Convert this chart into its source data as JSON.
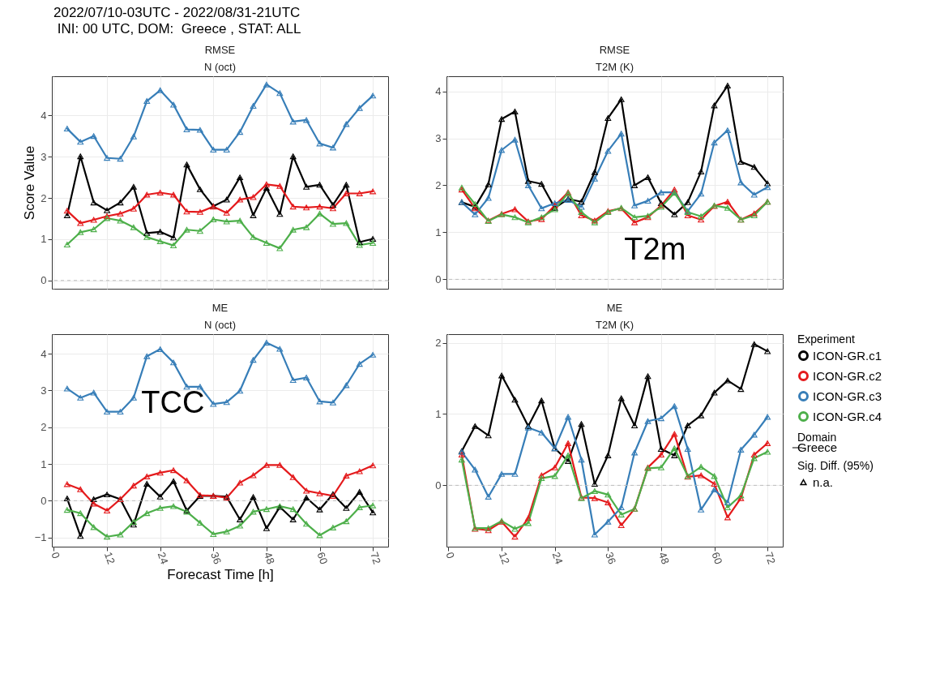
{
  "chart_data": [
    {
      "type": "line",
      "title": "RMSE",
      "subtitle": "N (oct)",
      "ylabel": "Score Value",
      "annotations": [
        "2022/07/10-03UTC - 2022/08/31-21UTC",
        " INI: 00 UTC, DOM:  Greece , STAT: ALL"
      ],
      "x": [
        3,
        6,
        9,
        12,
        15,
        18,
        21,
        24,
        27,
        30,
        33,
        36,
        39,
        42,
        45,
        48,
        51,
        54,
        57,
        60,
        63,
        66,
        69,
        72
      ],
      "xlim": [
        -0.45,
        75.45
      ],
      "xticks": [
        0,
        12,
        24,
        36,
        48,
        60,
        72
      ],
      "ylim": [
        -0.2,
        4.95
      ],
      "yticks": [
        0,
        1,
        2,
        3,
        4
      ],
      "tick_labels": "y",
      "grid": true,
      "marker": "triangle",
      "line_style": "solid",
      "ref_lines": [
        {
          "axis": "y",
          "value": 0,
          "color": "#bdbdbd",
          "line_style": "dashed"
        }
      ],
      "series": [
        {
          "color": "#000000",
          "values": [
            1.58,
            3.01,
            1.89,
            1.7,
            1.89,
            2.27,
            1.15,
            1.18,
            1.04,
            2.81,
            2.21,
            1.8,
            1.96,
            2.5,
            1.58,
            2.24,
            1.61,
            3.01,
            2.27,
            2.32,
            1.83,
            2.32,
            0.93,
            1.01
          ]
        },
        {
          "color": "#e41a1c",
          "values": [
            1.69,
            1.39,
            1.47,
            1.56,
            1.62,
            1.74,
            2.08,
            2.13,
            2.08,
            1.67,
            1.66,
            1.79,
            1.64,
            1.96,
            2.02,
            2.33,
            2.29,
            1.79,
            1.77,
            1.79,
            1.75,
            2.11,
            2.11,
            2.16
          ]
        },
        {
          "color": "#377eb8",
          "values": [
            3.68,
            3.36,
            3.5,
            2.97,
            2.95,
            3.49,
            4.35,
            4.61,
            4.26,
            3.66,
            3.65,
            3.17,
            3.17,
            3.6,
            4.23,
            4.75,
            4.54,
            3.85,
            3.89,
            3.32,
            3.22,
            3.79,
            4.18,
            4.48
          ]
        },
        {
          "color": "#4daf4a",
          "values": [
            0.87,
            1.17,
            1.24,
            1.51,
            1.45,
            1.29,
            1.05,
            0.95,
            0.85,
            1.23,
            1.2,
            1.48,
            1.43,
            1.45,
            1.05,
            0.91,
            0.78,
            1.23,
            1.29,
            1.62,
            1.37,
            1.39,
            0.86,
            0.91
          ]
        }
      ]
    },
    {
      "type": "line",
      "title": "RMSE",
      "subtitle": "T2M (K)",
      "annotations": [
        "T2m"
      ],
      "x": [
        3,
        6,
        9,
        12,
        15,
        18,
        21,
        24,
        27,
        30,
        33,
        36,
        39,
        42,
        45,
        48,
        51,
        54,
        57,
        60,
        63,
        66,
        69,
        72
      ],
      "xlim": [
        -0.45,
        75.45
      ],
      "xticks": [
        0,
        12,
        24,
        36,
        48,
        60,
        72
      ],
      "ylim": [
        -0.2,
        4.32
      ],
      "yticks": [
        0,
        1,
        2,
        3,
        4
      ],
      "tick_labels": "y",
      "grid": true,
      "marker": "triangle",
      "line_style": "solid",
      "ref_lines": [
        {
          "axis": "y",
          "value": 0,
          "color": "#bdbdbd",
          "line_style": "dashed"
        }
      ],
      "series": [
        {
          "color": "#000000",
          "values": [
            1.64,
            1.54,
            2.02,
            3.41,
            3.57,
            2.09,
            2.03,
            1.52,
            1.71,
            1.65,
            2.28,
            3.43,
            3.83,
            2.0,
            2.17,
            1.62,
            1.38,
            1.64,
            2.29,
            3.7,
            4.12,
            2.5,
            2.39,
            2.04
          ]
        },
        {
          "color": "#e41a1c",
          "values": [
            1.91,
            1.51,
            1.25,
            1.39,
            1.49,
            1.23,
            1.28,
            1.57,
            1.85,
            1.36,
            1.25,
            1.45,
            1.51,
            1.21,
            1.32,
            1.57,
            1.91,
            1.36,
            1.27,
            1.56,
            1.65,
            1.27,
            1.4,
            1.65
          ]
        },
        {
          "color": "#377eb8",
          "values": [
            1.64,
            1.38,
            1.73,
            2.75,
            2.97,
            2.0,
            1.51,
            1.62,
            1.69,
            1.54,
            2.14,
            2.73,
            3.1,
            1.57,
            1.67,
            1.85,
            1.85,
            1.45,
            1.82,
            2.91,
            3.17,
            2.06,
            1.8,
            1.96
          ]
        },
        {
          "color": "#4daf4a",
          "values": [
            1.95,
            1.6,
            1.24,
            1.38,
            1.32,
            1.21,
            1.32,
            1.49,
            1.83,
            1.43,
            1.21,
            1.43,
            1.52,
            1.32,
            1.35,
            1.54,
            1.84,
            1.43,
            1.34,
            1.57,
            1.52,
            1.27,
            1.36,
            1.65
          ]
        }
      ]
    },
    {
      "type": "line",
      "title": "ME",
      "subtitle": "N (oct)",
      "xlabel": "Forecast Time [h]",
      "annotations": [
        "TCC"
      ],
      "x": [
        3,
        6,
        9,
        12,
        15,
        18,
        21,
        24,
        27,
        30,
        33,
        36,
        39,
        42,
        45,
        48,
        51,
        54,
        57,
        60,
        63,
        66,
        69,
        72
      ],
      "xlim": [
        -0.45,
        75.45
      ],
      "xticks": [
        0,
        12,
        24,
        36,
        48,
        60,
        72
      ],
      "ylim": [
        -1.25,
        4.53
      ],
      "yticks": [
        -1,
        0,
        1,
        2,
        3,
        4
      ],
      "grid": true,
      "marker": "triangle",
      "line_style": "solid",
      "ref_lines": [
        {
          "axis": "y",
          "value": 0,
          "color": "#bdbdbd",
          "line_style": "dashed"
        }
      ],
      "series": [
        {
          "color": "#000000",
          "values": [
            0.06,
            -0.96,
            0.04,
            0.17,
            0.04,
            -0.65,
            0.46,
            0.11,
            0.53,
            -0.27,
            0.13,
            0.13,
            0.11,
            -0.51,
            0.1,
            -0.75,
            -0.17,
            -0.51,
            0.08,
            -0.24,
            0.18,
            -0.2,
            0.24,
            -0.32
          ]
        },
        {
          "color": "#e41a1c",
          "values": [
            0.45,
            0.31,
            -0.08,
            -0.27,
            0.04,
            0.41,
            0.66,
            0.76,
            0.83,
            0.55,
            0.15,
            0.13,
            0.08,
            0.49,
            0.69,
            0.97,
            0.97,
            0.64,
            0.27,
            0.2,
            0.13,
            0.68,
            0.8,
            0.96
          ]
        },
        {
          "color": "#377eb8",
          "values": [
            3.05,
            2.8,
            2.94,
            2.42,
            2.42,
            2.8,
            3.93,
            4.12,
            3.76,
            3.1,
            3.1,
            2.63,
            2.68,
            2.99,
            3.83,
            4.3,
            4.13,
            3.28,
            3.35,
            2.7,
            2.67,
            3.14,
            3.72,
            3.97
          ]
        },
        {
          "color": "#4daf4a",
          "values": [
            -0.25,
            -0.34,
            -0.72,
            -0.98,
            -0.92,
            -0.58,
            -0.34,
            -0.2,
            -0.15,
            -0.3,
            -0.6,
            -0.91,
            -0.84,
            -0.68,
            -0.3,
            -0.23,
            -0.15,
            -0.23,
            -0.63,
            -0.94,
            -0.73,
            -0.56,
            -0.18,
            -0.13
          ]
        }
      ]
    },
    {
      "type": "line",
      "title": "ME",
      "subtitle": "T2M (K)",
      "legend": "right",
      "legend_title": "Experiment",
      "annotations": [
        "Domain",
        "Greece",
        "Sig. Diff. (95%)",
        "n.a."
      ],
      "x": [
        3,
        6,
        9,
        12,
        15,
        18,
        21,
        24,
        27,
        30,
        33,
        36,
        39,
        42,
        45,
        48,
        51,
        54,
        57,
        60,
        63,
        66,
        69,
        72
      ],
      "xlim": [
        -0.45,
        75.45
      ],
      "xticks": [
        0,
        12,
        24,
        36,
        48,
        60,
        72
      ],
      "ylim": [
        -0.86,
        2.12
      ],
      "yticks": [
        0,
        1,
        2
      ],
      "grid": true,
      "marker": "triangle",
      "line_style": "solid",
      "ref_lines": [
        {
          "axis": "y",
          "value": 0,
          "color": "#bdbdbd",
          "line_style": "dashed"
        }
      ],
      "series": [
        {
          "name": "ICON-GR.c1",
          "color": "#000000",
          "values": [
            0.48,
            0.83,
            0.7,
            1.54,
            1.2,
            0.83,
            1.19,
            0.52,
            0.34,
            0.86,
            0.02,
            0.42,
            1.22,
            0.84,
            1.53,
            0.51,
            0.42,
            0.84,
            0.98,
            1.3,
            1.47,
            1.35,
            1.98,
            1.88
          ]
        },
        {
          "name": "ICON-GR.c2",
          "color": "#e41a1c",
          "values": [
            0.43,
            -0.61,
            -0.63,
            -0.51,
            -0.72,
            -0.46,
            0.14,
            0.25,
            0.59,
            -0.17,
            -0.18,
            -0.24,
            -0.56,
            -0.33,
            0.25,
            0.43,
            0.72,
            0.12,
            0.14,
            0.02,
            -0.45,
            -0.18,
            0.43,
            0.59
          ]
        },
        {
          "name": "ICON-GR.c3",
          "color": "#377eb8",
          "values": [
            0.47,
            0.22,
            -0.16,
            0.16,
            0.16,
            0.81,
            0.74,
            0.52,
            0.96,
            0.36,
            -0.69,
            -0.51,
            -0.31,
            0.46,
            0.9,
            0.94,
            1.11,
            0.51,
            -0.34,
            -0.06,
            -0.24,
            0.5,
            0.71,
            0.96
          ]
        },
        {
          "name": "ICON-GR.c4",
          "color": "#4daf4a",
          "values": [
            0.36,
            -0.6,
            -0.6,
            -0.5,
            -0.61,
            -0.53,
            0.1,
            0.13,
            0.42,
            -0.18,
            -0.08,
            -0.13,
            -0.41,
            -0.33,
            0.24,
            0.25,
            0.52,
            0.13,
            0.26,
            0.13,
            -0.31,
            -0.14,
            0.38,
            0.47
          ]
        }
      ]
    }
  ]
}
